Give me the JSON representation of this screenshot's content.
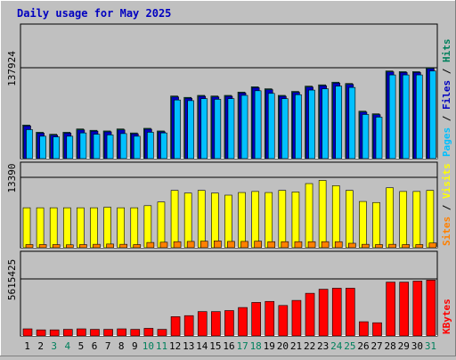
{
  "title": "Daily usage for May 2025",
  "colors": {
    "background": "#c0c0c0",
    "plot_background": "#c0c0c0",
    "hits": "#00805c",
    "files": "#0000c0",
    "pages": "#00c0ff",
    "visits": "#ffff00",
    "sites": "#ff8000",
    "kbytes": "#ff0000",
    "weekend_label": "#00805c",
    "weekday_label": "#000000"
  },
  "chart_data": [
    {
      "type": "bar",
      "panel": "hits-files-pages",
      "ymax_label": "137924",
      "ylim": [
        0,
        137924
      ],
      "legend": [
        "Pages",
        "Files",
        "Hits"
      ],
      "x": [
        "1",
        "2",
        "3",
        "4",
        "5",
        "6",
        "7",
        "8",
        "9",
        "10",
        "11",
        "12",
        "13",
        "14",
        "15",
        "16",
        "17",
        "18",
        "19",
        "20",
        "21",
        "22",
        "23",
        "24",
        "25",
        "26",
        "27",
        "28",
        "29",
        "30",
        "31"
      ],
      "weekend": [
        3,
        4,
        10,
        11,
        17,
        18,
        24,
        25,
        31
      ],
      "series": [
        {
          "name": "Hits",
          "values": [
            51000,
            40000,
            37000,
            40000,
            45000,
            43000,
            42000,
            45000,
            39000,
            46000,
            42000,
            95000,
            93000,
            96000,
            95000,
            96000,
            101000,
            109000,
            106000,
            96000,
            102000,
            110000,
            112000,
            116000,
            114000,
            72000,
            68000,
            133000,
            132000,
            132000,
            138000
          ]
        },
        {
          "name": "Files",
          "values": [
            51000,
            40000,
            37000,
            40000,
            45000,
            43000,
            42000,
            45000,
            39000,
            46000,
            42000,
            95000,
            93000,
            96000,
            95000,
            96000,
            101000,
            109000,
            106000,
            96000,
            102000,
            110000,
            112000,
            116000,
            114000,
            72000,
            68000,
            133000,
            132000,
            132000,
            138000
          ]
        },
        {
          "name": "Pages",
          "values": [
            44000,
            34000,
            33000,
            34000,
            39000,
            37000,
            36000,
            38000,
            34000,
            40000,
            39000,
            89000,
            88000,
            91000,
            90000,
            91000,
            96000,
            103000,
            99000,
            91000,
            97000,
            104000,
            106000,
            110000,
            108000,
            67000,
            63000,
            127000,
            127000,
            127000,
            133000
          ]
        }
      ]
    },
    {
      "type": "bar",
      "panel": "visits-sites",
      "ymax_label": "13390",
      "ylim": [
        0,
        13390
      ],
      "legend": [
        "Sites",
        "Visits"
      ],
      "series": [
        {
          "name": "Visits",
          "values": [
            7600,
            7600,
            7600,
            7600,
            7600,
            7600,
            7700,
            7600,
            7600,
            8000,
            8700,
            10900,
            10400,
            10900,
            10400,
            10000,
            10500,
            10700,
            10500,
            10900,
            10600,
            12200,
            12800,
            11800,
            10900,
            8800,
            8600,
            11400,
            10700,
            10700,
            10900
          ]
        },
        {
          "name": "Sites",
          "values": [
            600,
            600,
            600,
            550,
            600,
            650,
            700,
            650,
            600,
            1000,
            1050,
            1150,
            1200,
            1250,
            1300,
            1200,
            1200,
            1250,
            1150,
            1150,
            1150,
            1150,
            1150,
            1150,
            850,
            650,
            600,
            650,
            600,
            600,
            900
          ]
        }
      ]
    },
    {
      "type": "bar",
      "panel": "kbytes",
      "ymax_label": "5615425",
      "ylim": [
        0,
        5615425
      ],
      "legend": [
        "KBytes"
      ],
      "series": [
        {
          "name": "KBytes",
          "values": [
            700000,
            600000,
            600000,
            650000,
            700000,
            650000,
            650000,
            700000,
            650000,
            750000,
            650000,
            1900000,
            2000000,
            2400000,
            2400000,
            2500000,
            2800000,
            3300000,
            3400000,
            3000000,
            3500000,
            4200000,
            4600000,
            4700000,
            4700000,
            1400000,
            1300000,
            5300000,
            5300000,
            5400000,
            5500000
          ]
        }
      ]
    }
  ]
}
